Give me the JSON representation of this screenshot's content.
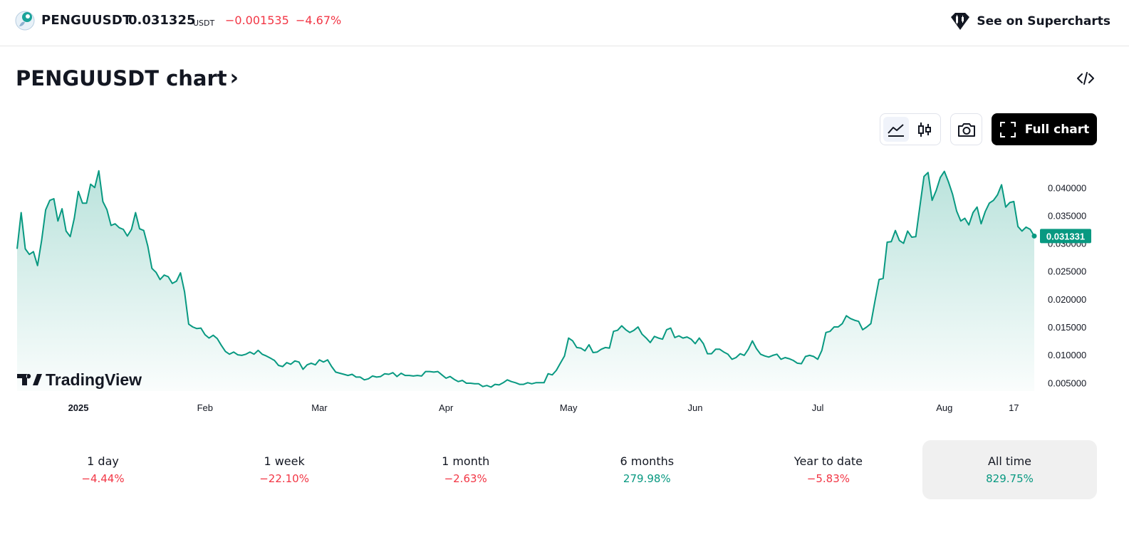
{
  "header": {
    "symbol": "PENGUUSDT",
    "price": "0.031325",
    "currency": "USDT",
    "change": "−0.001535",
    "change_percent": "−4.67%",
    "supercharts_label": "See on Supercharts",
    "logo_icon": "pengu-coin-logo",
    "negative_color": "#f23645"
  },
  "title": {
    "text": "PENGUUSDT chart",
    "chevron": "›"
  },
  "toolbar": {
    "line_chart_icon": "area-chart-icon",
    "candles_icon": "candles-icon",
    "snapshot_icon": "camera-icon",
    "full_chart_label": "Full chart"
  },
  "chart_data": {
    "type": "area",
    "line_color": "#089981",
    "last_price_label": "0.031331",
    "watermark": "TradingView",
    "y_ticks": [
      "0.040000",
      "0.035000",
      "0.030000",
      "0.025000",
      "0.020000",
      "0.015000",
      "0.010000",
      "0.005000"
    ],
    "x_ticks": [
      "2025",
      "Feb",
      "Mar",
      "Apr",
      "May",
      "Jun",
      "Jul",
      "Aug",
      "17"
    ],
    "ylim": [
      0.0035,
      0.044
    ],
    "values": [
      0.029,
      0.0355,
      0.029,
      0.028,
      0.0285,
      0.026,
      0.0305,
      0.036,
      0.0377,
      0.038,
      0.034,
      0.0362,
      0.0322,
      0.0312,
      0.0345,
      0.0393,
      0.0372,
      0.0372,
      0.0406,
      0.04,
      0.043,
      0.0375,
      0.036,
      0.0332,
      0.0335,
      0.0328,
      0.0325,
      0.0313,
      0.0325,
      0.0355,
      0.0326,
      0.0323,
      0.0295,
      0.0255,
      0.0248,
      0.0235,
      0.0243,
      0.024,
      0.0228,
      0.0232,
      0.0247,
      0.0213,
      0.0155,
      0.015,
      0.0147,
      0.0148,
      0.0136,
      0.013,
      0.0135,
      0.0129,
      0.0117,
      0.0106,
      0.0101,
      0.0105,
      0.01,
      0.0099,
      0.0101,
      0.0105,
      0.0101,
      0.0108,
      0.0101,
      0.0098,
      0.0094,
      0.009,
      0.0081,
      0.0079,
      0.0086,
      0.0083,
      0.0089,
      0.0087,
      0.0074,
      0.0082,
      0.0085,
      0.0082,
      0.0091,
      0.0087,
      0.0091,
      0.0079,
      0.0069,
      0.0067,
      0.0065,
      0.0063,
      0.0065,
      0.006,
      0.006,
      0.0055,
      0.0057,
      0.0062,
      0.006,
      0.0061,
      0.0066,
      0.0065,
      0.0068,
      0.0061,
      0.0067,
      0.0063,
      0.0063,
      0.0062,
      0.0063,
      0.0062,
      0.007,
      0.007,
      0.0069,
      0.007,
      0.0064,
      0.0058,
      0.0061,
      0.0056,
      0.0052,
      0.0054,
      0.0049,
      0.0049,
      0.0048,
      0.0048,
      0.0043,
      0.0045,
      0.0042,
      0.0047,
      0.0046,
      0.005,
      0.0055,
      0.0052,
      0.005,
      0.0047,
      0.0047,
      0.005,
      0.0048,
      0.005,
      0.005,
      0.005,
      0.0066,
      0.0064,
      0.0072,
      0.0085,
      0.0098,
      0.013,
      0.0125,
      0.0113,
      0.0112,
      0.0107,
      0.0118,
      0.0104,
      0.0105,
      0.011,
      0.0113,
      0.0112,
      0.0142,
      0.0144,
      0.0152,
      0.0145,
      0.014,
      0.0144,
      0.015,
      0.0137,
      0.013,
      0.0122,
      0.0133,
      0.013,
      0.0128,
      0.0145,
      0.0148,
      0.0131,
      0.0134,
      0.013,
      0.0132,
      0.0128,
      0.012,
      0.013,
      0.012,
      0.0102,
      0.0102,
      0.011,
      0.011,
      0.0105,
      0.0101,
      0.0092,
      0.0095,
      0.0102,
      0.0099,
      0.011,
      0.0125,
      0.0111,
      0.0101,
      0.0098,
      0.0096,
      0.0099,
      0.0101,
      0.0092,
      0.0095,
      0.0093,
      0.009,
      0.0085,
      0.0084,
      0.0097,
      0.0099,
      0.0097,
      0.0092,
      0.0108,
      0.014,
      0.0142,
      0.015,
      0.015,
      0.0156,
      0.017,
      0.0165,
      0.0162,
      0.016,
      0.0145,
      0.015,
      0.0156,
      0.0196,
      0.0235,
      0.0237,
      0.0302,
      0.0303,
      0.0323,
      0.0305,
      0.03,
      0.0322,
      0.0311,
      0.0312,
      0.0366,
      0.042,
      0.0427,
      0.0377,
      0.0395,
      0.0418,
      0.0429,
      0.041,
      0.0388,
      0.0358,
      0.034,
      0.0345,
      0.0333,
      0.0355,
      0.0365,
      0.0335,
      0.0357,
      0.0372,
      0.0377,
      0.0387,
      0.0405,
      0.0365,
      0.0373,
      0.0375,
      0.033,
      0.0322,
      0.0329,
      0.0325,
      0.0313
    ]
  },
  "performance": [
    {
      "period": "1 day",
      "value": "−4.44%",
      "trend": "neg"
    },
    {
      "period": "1 week",
      "value": "−22.10%",
      "trend": "neg"
    },
    {
      "period": "1 month",
      "value": "−2.63%",
      "trend": "neg"
    },
    {
      "period": "6 months",
      "value": "279.98%",
      "trend": "pos"
    },
    {
      "period": "Year to date",
      "value": "−5.83%",
      "trend": "neg"
    },
    {
      "period": "All time",
      "value": "829.75%",
      "trend": "pos",
      "selected": true
    }
  ]
}
